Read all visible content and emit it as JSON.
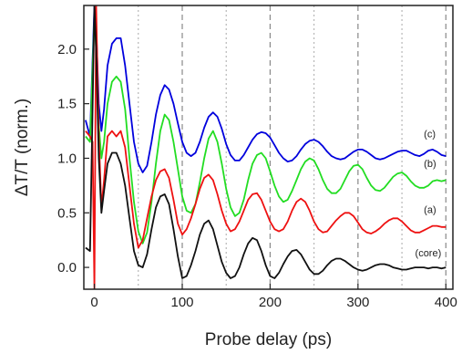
{
  "chart_data": {
    "type": "line",
    "title": "",
    "xlabel": "Probe delay  (ps)",
    "ylabel": "ΔT/T (norm.)",
    "xlim": [
      -12,
      408
    ],
    "ylim": [
      -0.2,
      2.4
    ],
    "xticks": [
      0,
      100,
      200,
      300,
      400
    ],
    "xtick_labels": [
      "0",
      "100",
      "200",
      "300",
      "400"
    ],
    "yticks": [
      0.0,
      0.5,
      1.0,
      1.5,
      2.0
    ],
    "ytick_labels": [
      "0.0",
      "0.5",
      "1.0",
      "1.5",
      "2.0"
    ],
    "grid": false,
    "reference_lines": {
      "dashed_x": [
        100,
        200,
        300,
        400
      ],
      "dotted_x": [
        50,
        150,
        250,
        350
      ]
    },
    "series": [
      {
        "name": "",
        "label": "(c)",
        "color": "#0000dd",
        "x": [
          -10,
          -5,
          0,
          2,
          5,
          8,
          11,
          15,
          20,
          25,
          30,
          35,
          40,
          45,
          50,
          55,
          60,
          65,
          70,
          75,
          80,
          85,
          90,
          95,
          100,
          105,
          110,
          115,
          120,
          125,
          130,
          135,
          140,
          145,
          150,
          155,
          160,
          165,
          170,
          175,
          180,
          185,
          190,
          195,
          200,
          205,
          210,
          215,
          220,
          225,
          230,
          235,
          240,
          245,
          250,
          255,
          260,
          265,
          270,
          275,
          280,
          285,
          290,
          295,
          300,
          305,
          310,
          315,
          320,
          325,
          330,
          335,
          340,
          345,
          350,
          355,
          360,
          365,
          370,
          375,
          380,
          385,
          390,
          395,
          400
        ],
        "y": [
          1.35,
          1.2,
          2.4,
          2.2,
          1.5,
          1.25,
          1.45,
          1.85,
          2.05,
          2.1,
          2.1,
          1.85,
          1.5,
          1.15,
          0.95,
          0.87,
          0.93,
          1.15,
          1.4,
          1.58,
          1.67,
          1.63,
          1.5,
          1.32,
          1.15,
          1.05,
          1.02,
          1.05,
          1.15,
          1.28,
          1.38,
          1.42,
          1.38,
          1.27,
          1.13,
          1.03,
          0.98,
          0.98,
          1.03,
          1.1,
          1.17,
          1.22,
          1.24,
          1.23,
          1.19,
          1.12,
          1.05,
          1.0,
          0.97,
          0.98,
          1.02,
          1.08,
          1.13,
          1.16,
          1.17,
          1.15,
          1.11,
          1.06,
          1.02,
          1.0,
          0.99,
          1.0,
          1.03,
          1.06,
          1.08,
          1.08,
          1.06,
          1.03,
          1.0,
          0.99,
          1.0,
          1.02,
          1.04,
          1.06,
          1.07,
          1.07,
          1.05,
          1.03,
          1.02,
          1.04,
          1.07,
          1.08,
          1.06,
          1.03,
          1.02
        ]
      },
      {
        "name": "",
        "label": "(b)",
        "color": "#22dd22",
        "x": [
          -10,
          -5,
          0,
          2,
          5,
          8,
          11,
          15,
          20,
          25,
          30,
          35,
          40,
          45,
          50,
          55,
          60,
          65,
          70,
          75,
          80,
          85,
          90,
          95,
          100,
          105,
          110,
          115,
          120,
          125,
          130,
          135,
          140,
          145,
          150,
          155,
          160,
          165,
          170,
          175,
          180,
          185,
          190,
          195,
          200,
          205,
          210,
          215,
          220,
          225,
          230,
          235,
          240,
          245,
          250,
          255,
          260,
          265,
          270,
          275,
          280,
          285,
          290,
          295,
          300,
          305,
          310,
          315,
          320,
          325,
          330,
          335,
          340,
          345,
          350,
          355,
          360,
          365,
          370,
          375,
          380,
          385,
          390,
          395,
          400
        ],
        "y": [
          1.2,
          1.15,
          2.3,
          2.0,
          1.3,
          1.0,
          1.15,
          1.5,
          1.7,
          1.75,
          1.7,
          1.45,
          1.0,
          0.6,
          0.33,
          0.22,
          0.32,
          0.6,
          0.95,
          1.25,
          1.4,
          1.35,
          1.15,
          0.9,
          0.65,
          0.52,
          0.5,
          0.58,
          0.78,
          1.0,
          1.18,
          1.25,
          1.15,
          0.95,
          0.72,
          0.55,
          0.47,
          0.5,
          0.62,
          0.8,
          0.95,
          1.03,
          1.05,
          1.0,
          0.88,
          0.75,
          0.65,
          0.6,
          0.62,
          0.7,
          0.8,
          0.9,
          0.97,
          1.0,
          0.98,
          0.9,
          0.8,
          0.72,
          0.68,
          0.68,
          0.72,
          0.8,
          0.88,
          0.93,
          0.94,
          0.9,
          0.82,
          0.75,
          0.71,
          0.7,
          0.73,
          0.78,
          0.83,
          0.86,
          0.87,
          0.84,
          0.79,
          0.75,
          0.73,
          0.73,
          0.75,
          0.79,
          0.8,
          0.79,
          0.8
        ]
      },
      {
        "name": "",
        "label": "(a)",
        "color": "#ee1111",
        "x": [
          -10,
          -5,
          -2,
          0,
          2,
          5,
          8,
          11,
          15,
          20,
          25,
          30,
          35,
          40,
          45,
          50,
          55,
          60,
          65,
          70,
          75,
          80,
          85,
          90,
          95,
          100,
          105,
          110,
          115,
          120,
          125,
          130,
          135,
          140,
          145,
          150,
          155,
          160,
          165,
          170,
          175,
          180,
          185,
          190,
          195,
          200,
          205,
          210,
          215,
          220,
          225,
          230,
          235,
          240,
          245,
          250,
          255,
          260,
          265,
          270,
          275,
          280,
          285,
          290,
          295,
          300,
          305,
          310,
          315,
          320,
          325,
          330,
          335,
          340,
          345,
          350,
          355,
          360,
          365,
          370,
          375,
          380,
          385,
          390,
          395,
          400
        ],
        "y": [
          1.25,
          1.2,
          1.15,
          -0.2,
          2.4,
          1.2,
          0.55,
          0.8,
          1.2,
          1.25,
          1.2,
          1.25,
          1.1,
          0.75,
          0.4,
          0.18,
          0.25,
          0.45,
          0.65,
          0.8,
          0.88,
          0.9,
          0.82,
          0.62,
          0.4,
          0.3,
          0.35,
          0.45,
          0.58,
          0.72,
          0.82,
          0.85,
          0.8,
          0.67,
          0.52,
          0.4,
          0.33,
          0.35,
          0.42,
          0.52,
          0.62,
          0.67,
          0.68,
          0.62,
          0.52,
          0.42,
          0.35,
          0.33,
          0.35,
          0.42,
          0.52,
          0.6,
          0.63,
          0.6,
          0.52,
          0.42,
          0.35,
          0.32,
          0.33,
          0.38,
          0.43,
          0.47,
          0.5,
          0.5,
          0.47,
          0.41,
          0.35,
          0.32,
          0.31,
          0.33,
          0.36,
          0.4,
          0.43,
          0.45,
          0.45,
          0.42,
          0.38,
          0.34,
          0.32,
          0.32,
          0.34,
          0.36,
          0.38,
          0.38,
          0.37,
          0.37
        ]
      },
      {
        "name": "",
        "label": "(core)",
        "color": "#111111",
        "x": [
          -10,
          -5,
          0,
          2,
          5,
          8,
          11,
          15,
          20,
          25,
          30,
          35,
          40,
          45,
          50,
          55,
          60,
          65,
          70,
          75,
          80,
          85,
          90,
          95,
          100,
          105,
          110,
          115,
          120,
          125,
          130,
          135,
          140,
          145,
          150,
          155,
          160,
          165,
          170,
          175,
          180,
          185,
          190,
          195,
          200,
          205,
          210,
          215,
          220,
          225,
          230,
          235,
          240,
          245,
          250,
          255,
          260,
          265,
          270,
          275,
          280,
          285,
          290,
          295,
          300,
          305,
          310,
          315,
          320,
          325,
          330,
          335,
          340,
          345,
          350,
          355,
          360,
          365,
          370,
          375,
          380,
          385,
          390,
          395,
          400
        ],
        "y": [
          0.18,
          0.15,
          2.4,
          2.0,
          1.0,
          0.5,
          0.7,
          0.95,
          1.05,
          1.05,
          0.95,
          0.75,
          0.45,
          0.15,
          0.02,
          0.0,
          0.12,
          0.35,
          0.55,
          0.65,
          0.67,
          0.58,
          0.35,
          0.1,
          -0.1,
          -0.08,
          0.02,
          0.15,
          0.3,
          0.4,
          0.43,
          0.35,
          0.2,
          0.05,
          -0.05,
          -0.1,
          -0.08,
          0.0,
          0.12,
          0.22,
          0.27,
          0.25,
          0.15,
          0.02,
          -0.08,
          -0.1,
          -0.05,
          0.03,
          0.1,
          0.15,
          0.16,
          0.12,
          0.05,
          -0.02,
          -0.06,
          -0.06,
          -0.03,
          0.02,
          0.06,
          0.08,
          0.08,
          0.06,
          0.03,
          0.0,
          -0.02,
          -0.03,
          -0.02,
          0.0,
          0.02,
          0.03,
          0.03,
          0.02,
          0.0,
          -0.01,
          -0.02,
          -0.02,
          -0.01,
          0.0,
          0.0,
          0.0,
          -0.01,
          0.0,
          0.0,
          -0.01,
          0.0
        ]
      }
    ],
    "annotations": [
      {
        "text": "(c)",
        "x": 375,
        "y": 1.19
      },
      {
        "text": "(b)",
        "x": 375,
        "y": 0.92
      },
      {
        "text": "(a)",
        "x": 375,
        "y": 0.5
      },
      {
        "text": "(core)",
        "x": 365,
        "y": 0.1
      }
    ]
  }
}
